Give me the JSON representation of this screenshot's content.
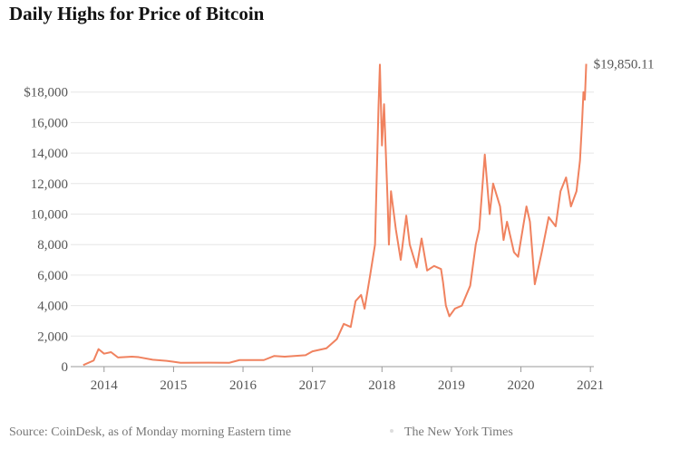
{
  "chart_data": {
    "type": "line",
    "title": "Daily Highs for Price of Bitcoin",
    "x": [
      2013.7,
      2013.85,
      2013.92,
      2014.0,
      2014.1,
      2014.2,
      2014.4,
      2014.5,
      2014.7,
      2014.9,
      2015.0,
      2015.1,
      2015.5,
      2015.8,
      2015.95,
      2016.3,
      2016.45,
      2016.6,
      2016.9,
      2017.0,
      2017.2,
      2017.35,
      2017.45,
      2017.55,
      2017.62,
      2017.7,
      2017.75,
      2017.83,
      2017.9,
      2017.95,
      2017.97,
      2018.0,
      2018.03,
      2018.08,
      2018.1,
      2018.13,
      2018.2,
      2018.27,
      2018.35,
      2018.4,
      2018.5,
      2018.57,
      2018.65,
      2018.75,
      2018.85,
      2018.88,
      2018.92,
      2018.97,
      2019.05,
      2019.15,
      2019.27,
      2019.35,
      2019.4,
      2019.48,
      2019.55,
      2019.6,
      2019.7,
      2019.75,
      2019.8,
      2019.9,
      2019.96,
      2020.08,
      2020.13,
      2020.2,
      2020.3,
      2020.4,
      2020.5,
      2020.57,
      2020.65,
      2020.72,
      2020.8,
      2020.85,
      2020.88,
      2020.9,
      2020.92,
      2020.94
    ],
    "series": [
      {
        "color": "#f0825f",
        "values": [
          100,
          400,
          1150,
          850,
          950,
          600,
          650,
          620,
          450,
          380,
          320,
          250,
          260,
          250,
          430,
          430,
          700,
          650,
          750,
          1000,
          1200,
          1800,
          2800,
          2600,
          4300,
          4700,
          3800,
          6000,
          8000,
          17000,
          19800,
          14500,
          17200,
          11000,
          8000,
          11500,
          9000,
          7000,
          9900,
          8000,
          6500,
          8400,
          6300,
          6600,
          6400,
          5500,
          4000,
          3300,
          3800,
          4000,
          5300,
          8000,
          9000,
          13900,
          10000,
          12000,
          10500,
          8300,
          9500,
          7500,
          7200,
          10500,
          9500,
          5400,
          7500,
          9800,
          9200,
          11500,
          12400,
          10500,
          11500,
          13500,
          16000,
          18000,
          17500,
          19850.11
        ]
      }
    ],
    "annotations": [
      {
        "text": "$19,850.11"
      }
    ],
    "xlim": [
      2013.52,
      2021.05
    ],
    "xticks": [
      2014,
      2015,
      2016,
      2017,
      2018,
      2019,
      2020,
      2021
    ],
    "ylim": [
      0,
      20000
    ],
    "yticks": [
      0,
      {
        "value": 2000,
        "label": "2,000"
      },
      {
        "value": 4000,
        "label": "4,000"
      },
      {
        "value": 6000,
        "label": "6,000"
      },
      {
        "value": 8000,
        "label": "8,000"
      },
      {
        "value": 10000,
        "label": "10,000"
      },
      {
        "value": 12000,
        "label": "12,000"
      },
      {
        "value": 14000,
        "label": "14,000"
      },
      {
        "value": 16000,
        "label": "16,000"
      },
      {
        "value": 18000,
        "label": "$18,000"
      }
    ],
    "grid": true,
    "source": "Source: CoinDesk, as of Monday morning Eastern time",
    "credit": "The New York Times"
  }
}
